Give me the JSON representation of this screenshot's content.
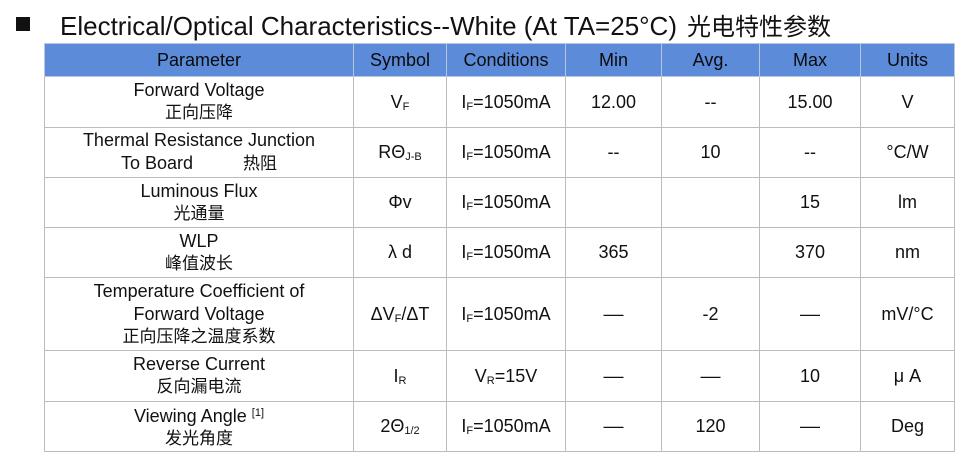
{
  "heading": {
    "title": "Electrical/Optical Characteristics--White (At TA=25°C)",
    "title_cn": "光电特性参数"
  },
  "table": {
    "headers": [
      "Parameter",
      "Symbol",
      "Conditions",
      "Min",
      "Avg.",
      "Max",
      "Units"
    ],
    "rows": [
      {
        "param_en": "Forward Voltage",
        "param_zh": "正向压降",
        "symbol_main": "V",
        "symbol_sub": "F",
        "cond_main": "I",
        "cond_sub": "F",
        "cond_rest": "=1050mA",
        "min": "12.00",
        "avg": "--",
        "max": "15.00",
        "unit": "V"
      },
      {
        "param_en_1": "Thermal Resistance Junction",
        "param_en_2": "To Board",
        "param_zh": "热阻",
        "symbol_main": "RΘ",
        "symbol_sub": "J-B",
        "cond_main": "I",
        "cond_sub": "F",
        "cond_rest": "=1050mA",
        "min": "--",
        "avg": "10",
        "max": "--",
        "unit": "°C/W"
      },
      {
        "param_en": "Luminous Flux",
        "param_zh": "光通量",
        "symbol_main": "Φv",
        "symbol_sub": "",
        "cond_main": "I",
        "cond_sub": "F",
        "cond_rest": "=1050mA",
        "min": "",
        "avg": "",
        "max": "15",
        "unit": "lm"
      },
      {
        "param_en": "WLP",
        "param_zh": "峰值波长",
        "symbol_main": "λ d",
        "symbol_sub": "",
        "cond_main": "I",
        "cond_sub": "F",
        "cond_rest": "=1050mA",
        "min": "365",
        "avg": "",
        "max": "370",
        "unit": "nm"
      },
      {
        "param_en_1": "Temperature Coefficient of",
        "param_en_2": "Forward Voltage",
        "param_zh": "正向压降之温度系数",
        "symbol_main": "ΔV",
        "symbol_sub": "F",
        "symbol_rest": "/ΔT",
        "cond_main": "I",
        "cond_sub": "F",
        "cond_rest": "=1050mA",
        "min": "––",
        "avg": "-2",
        "max": "––",
        "unit": "mV/°C"
      },
      {
        "param_en": "Reverse Current",
        "param_zh": "反向漏电流",
        "symbol_main": "I",
        "symbol_sub": "R",
        "cond_main": "V",
        "cond_sub": "R",
        "cond_rest": "=15V",
        "min": "––",
        "avg": "––",
        "max": "10",
        "unit": "μ A"
      },
      {
        "param_en": "Viewing Angle",
        "param_sup": "[1]",
        "param_zh": "发光角度",
        "symbol_main": "2Θ",
        "symbol_sub": "1/2",
        "cond_main": "I",
        "cond_sub": "F",
        "cond_rest": "=1050mA",
        "min": "––",
        "avg": "120",
        "max": "––",
        "unit": "Deg"
      }
    ]
  }
}
